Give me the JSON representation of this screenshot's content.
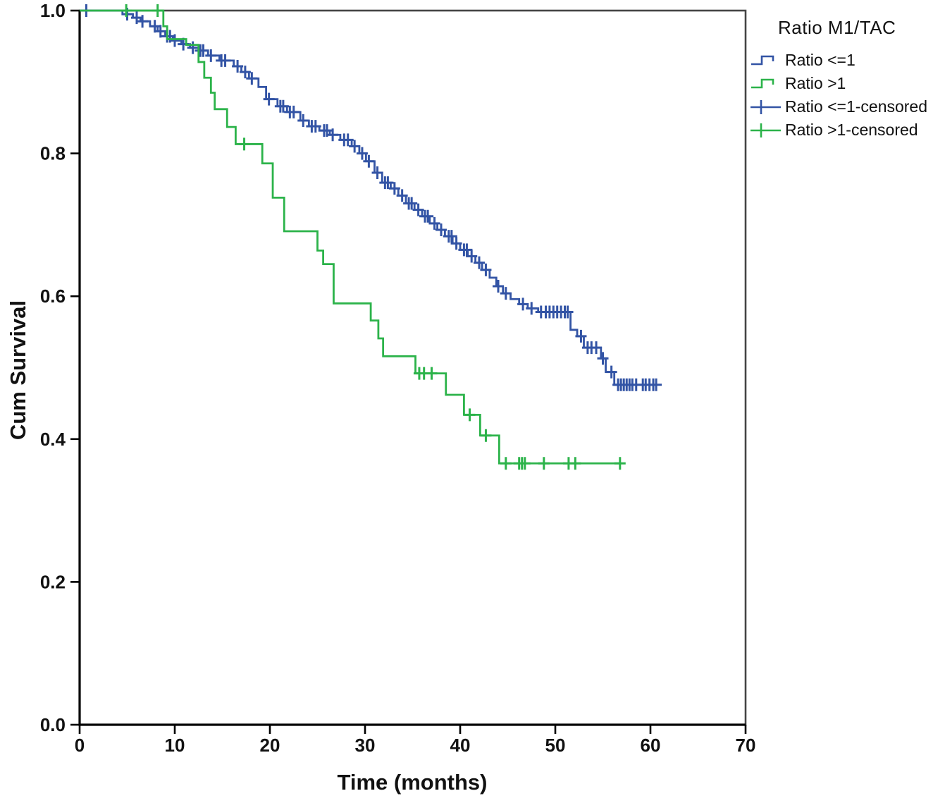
{
  "chart_data": {
    "type": "line",
    "subtype": "kaplan-meier-step",
    "title": "",
    "xlabel": "Time (months)",
    "ylabel": "Cum Survival",
    "xlim": [
      0,
      70
    ],
    "ylim": [
      0.0,
      1.0
    ],
    "x_ticks": [
      0,
      10,
      20,
      30,
      40,
      50,
      60,
      70
    ],
    "y_ticks": [
      "0.0",
      "0.2",
      "0.4",
      "0.6",
      "0.8",
      "1.0"
    ],
    "grid": false,
    "frame_color": "#454545",
    "axis_color": "#000000",
    "legend": {
      "title": "Ratio M1/TAC",
      "position": "right",
      "entries": [
        {
          "label": "Ratio <=1",
          "symbol": "step",
          "color": "#3354a5"
        },
        {
          "label": "Ratio >1",
          "symbol": "step",
          "color": "#2cb34a"
        },
        {
          "label": "Ratio <=1-censored",
          "symbol": "plus",
          "color": "#3354a5"
        },
        {
          "label": "Ratio >1-censored",
          "symbol": "plus",
          "color": "#2cb34a"
        }
      ]
    },
    "series": [
      {
        "name": "Ratio <=1",
        "color": "#3354a5",
        "points": [
          [
            0,
            1.0
          ],
          [
            4.5,
            0.995
          ],
          [
            5.6,
            0.99
          ],
          [
            6.4,
            0.985
          ],
          [
            7.4,
            0.978
          ],
          [
            8.2,
            0.971
          ],
          [
            9.0,
            0.964
          ],
          [
            9.8,
            0.958
          ],
          [
            10.7,
            0.953
          ],
          [
            11.6,
            0.948
          ],
          [
            12.5,
            0.944
          ],
          [
            13.5,
            0.937
          ],
          [
            14.7,
            0.93
          ],
          [
            16.2,
            0.922
          ],
          [
            17.0,
            0.914
          ],
          [
            17.8,
            0.905
          ],
          [
            18.8,
            0.893
          ],
          [
            19.6,
            0.876
          ],
          [
            20.8,
            0.866
          ],
          [
            21.8,
            0.858
          ],
          [
            23.2,
            0.846
          ],
          [
            24.1,
            0.838
          ],
          [
            25.2,
            0.832
          ],
          [
            26.3,
            0.826
          ],
          [
            27.4,
            0.819
          ],
          [
            28.6,
            0.81
          ],
          [
            29.4,
            0.8
          ],
          [
            30.1,
            0.789
          ],
          [
            31.0,
            0.773
          ],
          [
            31.8,
            0.759
          ],
          [
            32.7,
            0.751
          ],
          [
            33.5,
            0.741
          ],
          [
            34.3,
            0.73
          ],
          [
            35.2,
            0.721
          ],
          [
            36.0,
            0.712
          ],
          [
            36.8,
            0.702
          ],
          [
            37.6,
            0.693
          ],
          [
            38.4,
            0.684
          ],
          [
            39.2,
            0.674
          ],
          [
            40.0,
            0.665
          ],
          [
            40.8,
            0.656
          ],
          [
            41.6,
            0.647
          ],
          [
            42.3,
            0.637
          ],
          [
            43.1,
            0.626
          ],
          [
            43.8,
            0.614
          ],
          [
            44.5,
            0.604
          ],
          [
            45.3,
            0.596
          ],
          [
            46.2,
            0.589
          ],
          [
            47.1,
            0.583
          ],
          [
            48.2,
            0.578
          ],
          [
            51.6,
            0.553
          ],
          [
            52.3,
            0.544
          ],
          [
            53.0,
            0.528
          ],
          [
            54.8,
            0.513
          ],
          [
            55.3,
            0.494
          ],
          [
            56.2,
            0.476
          ],
          [
            60.7,
            0.476
          ]
        ],
        "censored": [
          [
            0.7,
            1.0
          ],
          [
            5.0,
            0.995
          ],
          [
            6.0,
            0.99
          ],
          [
            6.6,
            0.985
          ],
          [
            7.9,
            0.978
          ],
          [
            8.5,
            0.971
          ],
          [
            9.2,
            0.964
          ],
          [
            9.5,
            0.964
          ],
          [
            10.0,
            0.958
          ],
          [
            10.9,
            0.953
          ],
          [
            11.9,
            0.948
          ],
          [
            12.7,
            0.944
          ],
          [
            13.0,
            0.944
          ],
          [
            13.8,
            0.937
          ],
          [
            14.9,
            0.93
          ],
          [
            15.3,
            0.93
          ],
          [
            16.6,
            0.922
          ],
          [
            17.4,
            0.914
          ],
          [
            18.1,
            0.905
          ],
          [
            19.9,
            0.876
          ],
          [
            21.1,
            0.866
          ],
          [
            21.4,
            0.866
          ],
          [
            22.1,
            0.858
          ],
          [
            22.5,
            0.858
          ],
          [
            23.5,
            0.846
          ],
          [
            24.4,
            0.838
          ],
          [
            24.8,
            0.838
          ],
          [
            25.7,
            0.832
          ],
          [
            26.0,
            0.832
          ],
          [
            26.6,
            0.826
          ],
          [
            27.8,
            0.819
          ],
          [
            28.2,
            0.819
          ],
          [
            28.9,
            0.81
          ],
          [
            29.7,
            0.8
          ],
          [
            30.4,
            0.789
          ],
          [
            31.3,
            0.773
          ],
          [
            32.1,
            0.759
          ],
          [
            32.4,
            0.759
          ],
          [
            33.1,
            0.751
          ],
          [
            33.9,
            0.741
          ],
          [
            34.6,
            0.73
          ],
          [
            34.9,
            0.73
          ],
          [
            35.6,
            0.721
          ],
          [
            36.3,
            0.712
          ],
          [
            36.6,
            0.712
          ],
          [
            37.3,
            0.702
          ],
          [
            38.0,
            0.693
          ],
          [
            38.8,
            0.684
          ],
          [
            39.1,
            0.684
          ],
          [
            39.6,
            0.674
          ],
          [
            40.4,
            0.665
          ],
          [
            40.7,
            0.665
          ],
          [
            41.2,
            0.656
          ],
          [
            42.0,
            0.647
          ],
          [
            42.7,
            0.637
          ],
          [
            44.0,
            0.614
          ],
          [
            44.8,
            0.604
          ],
          [
            46.6,
            0.589
          ],
          [
            47.5,
            0.583
          ],
          [
            48.5,
            0.578
          ],
          [
            49.0,
            0.578
          ],
          [
            49.4,
            0.578
          ],
          [
            49.8,
            0.578
          ],
          [
            50.2,
            0.578
          ],
          [
            50.6,
            0.578
          ],
          [
            51.0,
            0.578
          ],
          [
            51.3,
            0.578
          ],
          [
            52.7,
            0.544
          ],
          [
            53.4,
            0.528
          ],
          [
            53.8,
            0.528
          ],
          [
            54.3,
            0.528
          ],
          [
            55.0,
            0.513
          ],
          [
            55.9,
            0.494
          ],
          [
            56.6,
            0.476
          ],
          [
            56.9,
            0.476
          ],
          [
            57.2,
            0.476
          ],
          [
            57.5,
            0.476
          ],
          [
            57.8,
            0.476
          ],
          [
            58.1,
            0.476
          ],
          [
            58.5,
            0.476
          ],
          [
            59.2,
            0.476
          ],
          [
            59.5,
            0.476
          ],
          [
            59.9,
            0.476
          ],
          [
            60.3,
            0.476
          ],
          [
            60.6,
            0.476
          ]
        ]
      },
      {
        "name": "Ratio >1",
        "color": "#2cb34a",
        "points": [
          [
            0,
            1.0
          ],
          [
            8.8,
            0.978
          ],
          [
            9.2,
            0.96
          ],
          [
            11.2,
            0.952
          ],
          [
            12.5,
            0.928
          ],
          [
            13.1,
            0.906
          ],
          [
            13.8,
            0.885
          ],
          [
            14.2,
            0.862
          ],
          [
            15.5,
            0.837
          ],
          [
            16.4,
            0.813
          ],
          [
            19.2,
            0.786
          ],
          [
            20.3,
            0.738
          ],
          [
            21.5,
            0.691
          ],
          [
            25.0,
            0.664
          ],
          [
            25.6,
            0.645
          ],
          [
            26.7,
            0.59
          ],
          [
            30.6,
            0.566
          ],
          [
            31.4,
            0.541
          ],
          [
            31.9,
            0.516
          ],
          [
            35.3,
            0.492
          ],
          [
            38.5,
            0.462
          ],
          [
            40.4,
            0.434
          ],
          [
            42.1,
            0.405
          ],
          [
            44.1,
            0.366
          ],
          [
            56.9,
            0.366
          ]
        ],
        "censored": [
          [
            4.9,
            1.0
          ],
          [
            8.2,
            1.0
          ],
          [
            17.3,
            0.813
          ],
          [
            35.7,
            0.492
          ],
          [
            36.2,
            0.492
          ],
          [
            37.0,
            0.492
          ],
          [
            41.0,
            0.434
          ],
          [
            42.7,
            0.405
          ],
          [
            44.8,
            0.366
          ],
          [
            46.2,
            0.366
          ],
          [
            46.5,
            0.366
          ],
          [
            46.8,
            0.366
          ],
          [
            48.8,
            0.366
          ],
          [
            51.4,
            0.366
          ],
          [
            52.1,
            0.366
          ],
          [
            56.8,
            0.366
          ]
        ]
      }
    ]
  }
}
